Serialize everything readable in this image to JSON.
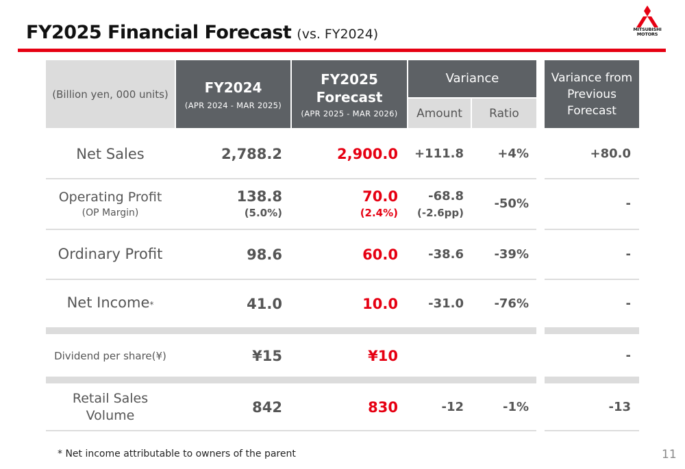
{
  "title": {
    "main": "FY2025 Financial Forecast",
    "sub": "(vs. FY2024)"
  },
  "logo": {
    "text_line1": "MITSUBISHI",
    "text_line2": "MOTORS",
    "color": "#e60012"
  },
  "header": {
    "units": "(Billion yen, 000  units)",
    "fy2024": {
      "label": "FY2024",
      "period": "(APR 2024 - MAR 2025)"
    },
    "fy2025": {
      "label_line1": "FY2025",
      "label_line2": "Forecast",
      "period": "(APR 2025 - MAR 2026)"
    },
    "variance": {
      "label": "Variance",
      "amount": "Amount",
      "ratio": "Ratio"
    },
    "prev": {
      "line1": "Variance from",
      "line2": "Previous",
      "line3": "Forecast"
    }
  },
  "rows": {
    "net_sales": {
      "label": "Net Sales",
      "fy2024": "2,788.2",
      "fy2025": "2,900.0",
      "amount": "+111.8",
      "ratio": "+4%",
      "prev": "+80.0"
    },
    "op_profit": {
      "label": "Operating Profit",
      "sublabel": "(OP Margin)",
      "fy2024": "138.8",
      "fy2024_sub": "(5.0%)",
      "fy2025": "70.0",
      "fy2025_sub": "(2.4%)",
      "amount": "-68.8",
      "amount_sub": "(-2.6pp)",
      "ratio": "-50%",
      "prev": "-"
    },
    "ord_profit": {
      "label": "Ordinary Profit",
      "fy2024": "98.6",
      "fy2025": "60.0",
      "amount": "-38.6",
      "ratio": "-39%",
      "prev": "-"
    },
    "net_income": {
      "label": "Net Income",
      "mark": "*",
      "fy2024": "41.0",
      "fy2025": "10.0",
      "amount": "-31.0",
      "ratio": "-76%",
      "prev": "-"
    },
    "dividend": {
      "label": "Dividend per share(¥)",
      "fy2024": "¥15",
      "fy2025": "¥10",
      "prev": "-"
    },
    "retail": {
      "label_line1": "Retail Sales",
      "label_line2": "Volume",
      "fy2024": "842",
      "fy2025": "830",
      "amount": "-12",
      "ratio": "-1%",
      "prev": "-13"
    }
  },
  "footnote": "* Net income attributable to owners of the parent",
  "page_number": "11",
  "colors": {
    "accent_red": "#e60012",
    "header_dark": "#5d6165",
    "header_light": "#dcdcdc",
    "text_gray": "#555555"
  }
}
